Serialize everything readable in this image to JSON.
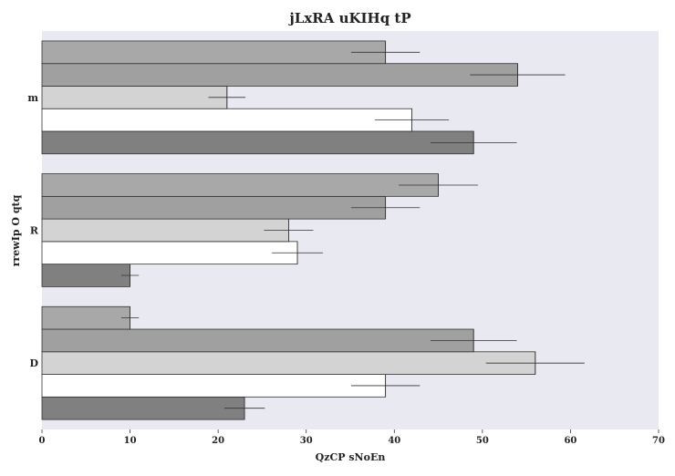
{
  "chart_data": {
    "type": "bar",
    "orientation": "horizontal",
    "title": "jLxRA uKIHq tP",
    "xlabel": "QzCP sNoEn",
    "ylabel": "rrewIp O qtq",
    "xlim": [
      0,
      70
    ],
    "x_ticks": [
      "0",
      "10",
      "20",
      "30",
      "40",
      "50",
      "60",
      "70"
    ],
    "grid": false,
    "legend": "none",
    "categories": [
      "D",
      "R",
      "m"
    ],
    "series": [
      {
        "color": "#808080",
        "values": [
          23,
          10,
          49
        ],
        "errors": [
          2.3,
          1.0,
          4.9
        ]
      },
      {
        "color": "#ffffff",
        "values": [
          39,
          29,
          42
        ],
        "errors": [
          3.9,
          2.9,
          4.2
        ]
      },
      {
        "color": "#d3d3d3",
        "values": [
          56,
          28,
          21
        ],
        "errors": [
          5.6,
          2.8,
          2.1
        ]
      },
      {
        "color": "#a0a0a0",
        "values": [
          49,
          39,
          54
        ],
        "errors": [
          4.9,
          3.9,
          5.4
        ]
      },
      {
        "color": "#a8a8a8",
        "values": [
          10,
          45,
          39
        ],
        "errors": [
          1.0,
          4.5,
          3.9
        ]
      }
    ],
    "plot_background": "#e9e9f2",
    "edge_color": "#333333"
  }
}
